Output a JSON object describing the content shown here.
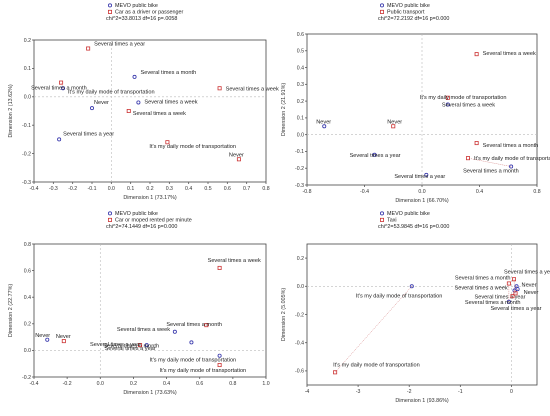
{
  "chart_data": [
    {
      "type": "scatter",
      "legend": [
        {
          "name": "MEVO public bike",
          "color": "#3333aa",
          "marker": "circle"
        },
        {
          "name": "Car as a driver or passenger",
          "color": "#cc3333",
          "marker": "square"
        }
      ],
      "stats": "chi^2=33.8013  df=16 p=.0058",
      "xlabel": "Dimension 1 (73.17%)",
      "ylabel": "Dimension 2 (13.62%)",
      "xlim": [
        -0.4,
        0.8
      ],
      "ylim": [
        -0.3,
        0.2
      ],
      "xticks": [
        "-0.4",
        "-0.3",
        "-0.2",
        "-0.1",
        "0.0",
        "0.1",
        "0.2",
        "0.3",
        "0.4",
        "0.5",
        "0.6",
        "0.7",
        "0.8"
      ],
      "yticks": [
        "-0.3",
        "-0.2",
        "-0.1",
        "0.0",
        "0.1",
        "0.2"
      ],
      "points": [
        {
          "series": 0,
          "x": -0.25,
          "y": 0.03,
          "label": "It's my daily mode of transportation"
        },
        {
          "series": 0,
          "x": 0.14,
          "y": -0.02,
          "label": "Several times a week"
        },
        {
          "series": 0,
          "x": -0.1,
          "y": -0.04,
          "label": "Never"
        },
        {
          "series": 0,
          "x": 0.12,
          "y": 0.07,
          "label": "Several times a month"
        },
        {
          "series": 0,
          "x": -0.27,
          "y": -0.15,
          "label": "Several times a year"
        },
        {
          "series": 1,
          "x": -0.26,
          "y": 0.05,
          "label": "Several times a month"
        },
        {
          "series": 1,
          "x": 0.09,
          "y": -0.05,
          "label": "Several times a week"
        },
        {
          "series": 1,
          "x": 0.56,
          "y": 0.03,
          "label": "Several times a week"
        },
        {
          "series": 1,
          "x": -0.12,
          "y": 0.17,
          "label": "Several times a year"
        },
        {
          "series": 1,
          "x": 0.29,
          "y": -0.16,
          "label": "It's my daily mode of transportation"
        },
        {
          "series": 1,
          "x": 0.66,
          "y": -0.22,
          "label": "Never"
        }
      ],
      "connectors": [
        [
          0,
          5
        ]
      ]
    },
    {
      "type": "scatter",
      "legend": [
        {
          "name": "MEVO public bike",
          "color": "#3333aa",
          "marker": "circle"
        },
        {
          "name": "Public transport",
          "color": "#cc3333",
          "marker": "square"
        }
      ],
      "stats": "chi^2=72.2192  df=16 p=0.000",
      "xlabel": "Dimension 1 (66.70%)",
      "ylabel": "Dimension 2 (21.91%)",
      "xlim": [
        -0.8,
        0.8
      ],
      "ylim": [
        -0.3,
        0.6
      ],
      "xticks": [
        "-0.8",
        "-0.4",
        "0.0",
        "0.4",
        "0.8"
      ],
      "yticks": [
        "-0.3",
        "-0.2",
        "-0.1",
        "0.0",
        "0.1",
        "0.2",
        "0.3",
        "0.4",
        "0.5",
        "0.6"
      ],
      "points": [
        {
          "series": 0,
          "x": -0.68,
          "y": 0.05,
          "label": "Never"
        },
        {
          "series": 0,
          "x": 0.18,
          "y": 0.18,
          "label": "Several times a week"
        },
        {
          "series": 0,
          "x": -0.33,
          "y": -0.12,
          "label": "Several times a year"
        },
        {
          "series": 0,
          "x": 0.62,
          "y": -0.19,
          "label": "Several times a month"
        },
        {
          "series": 0,
          "x": 0.03,
          "y": -0.24,
          "label": "Several times a year"
        },
        {
          "series": 1,
          "x": 0.38,
          "y": 0.48,
          "label": "Several times a week"
        },
        {
          "series": 1,
          "x": 0.18,
          "y": 0.22,
          "label": "It's my daily mode of transportation"
        },
        {
          "series": 1,
          "x": -0.2,
          "y": 0.05,
          "label": "Never"
        },
        {
          "series": 1,
          "x": 0.38,
          "y": -0.05,
          "label": "Several times a month"
        },
        {
          "series": 1,
          "x": 0.32,
          "y": -0.14,
          "label": "It's my daily mode of transportation"
        }
      ],
      "connectors": [
        [
          3,
          9
        ]
      ]
    },
    {
      "type": "scatter",
      "legend": [
        {
          "name": "MEVO public bike",
          "color": "#3333aa",
          "marker": "circle"
        },
        {
          "name": "Car or moped rented per minute",
          "color": "#cc3333",
          "marker": "square"
        }
      ],
      "stats": "chi^2=74.1449  df=16 p=0.000",
      "xlabel": "Dimension 1 (73.63%)",
      "ylabel": "Dimension 2 (22.77%)",
      "xlim": [
        -0.4,
        1.0
      ],
      "ylim": [
        -0.2,
        0.8
      ],
      "xticks": [
        "-0.4",
        "-0.2",
        "0.0",
        "0.2",
        "0.4",
        "0.6",
        "0.8",
        "1.0"
      ],
      "yticks": [
        "-0.2",
        "0.0",
        "0.2",
        "0.4",
        "0.6",
        "0.8"
      ],
      "points": [
        {
          "series": 0,
          "x": -0.32,
          "y": 0.08,
          "label": "Never"
        },
        {
          "series": 0,
          "x": 0.45,
          "y": 0.14,
          "label": "Several times a week"
        },
        {
          "series": 0,
          "x": 0.28,
          "y": 0.04,
          "label": "Several times a year"
        },
        {
          "series": 0,
          "x": 0.55,
          "y": 0.06,
          "label": "Several times a month"
        },
        {
          "series": 0,
          "x": 0.72,
          "y": -0.04,
          "label": "It's my daily mode of transportation"
        },
        {
          "series": 1,
          "x": 0.72,
          "y": 0.62,
          "label": "Several times a week"
        },
        {
          "series": 1,
          "x": -0.22,
          "y": 0.07,
          "label": "Never"
        },
        {
          "series": 1,
          "x": 0.64,
          "y": 0.19,
          "label": "Several times a month"
        },
        {
          "series": 1,
          "x": 0.24,
          "y": 0.04,
          "label": "Several times a year"
        },
        {
          "series": 1,
          "x": 0.72,
          "y": -0.11,
          "label": "It's my daily mode of transportation"
        }
      ],
      "connectors": []
    },
    {
      "type": "scatter",
      "legend": [
        {
          "name": "MEVO public bike",
          "color": "#3333aa",
          "marker": "circle"
        },
        {
          "name": "Taxi",
          "color": "#cc3333",
          "marker": "square"
        }
      ],
      "stats": "chi^2=53.9845  df=16 p=0.000",
      "xlabel": "Dimension 1 (93.86%)",
      "ylabel": "Dimension 2 (5.005%)",
      "xlim": [
        -4,
        0.5
      ],
      "ylim": [
        -0.7,
        0.3
      ],
      "xticks": [
        "-4",
        "-3",
        "-2",
        "-1",
        "0"
      ],
      "yticks": [
        "-0.6",
        "-0.4",
        "-0.2",
        "0.0",
        "0.2"
      ],
      "points": [
        {
          "series": 0,
          "x": -1.95,
          "y": 0.0,
          "label": "It's my daily mode of transportation"
        },
        {
          "series": 0,
          "x": -0.05,
          "y": -0.11,
          "label": "Several times a month"
        },
        {
          "series": 0,
          "x": 0.06,
          "y": -0.03,
          "label": "Several times a year"
        },
        {
          "series": 0,
          "x": 0.12,
          "y": -0.02,
          "label": "Never"
        },
        {
          "series": 0,
          "x": 0.1,
          "y": 0.0,
          "label": "Several times a week"
        },
        {
          "series": 1,
          "x": -3.45,
          "y": -0.61,
          "label": "It's my daily mode of transportation"
        },
        {
          "series": 1,
          "x": -0.05,
          "y": 0.02,
          "label": "Several times a month"
        },
        {
          "series": 1,
          "x": 0.05,
          "y": 0.05,
          "label": "Several times a year"
        },
        {
          "series": 1,
          "x": 0.08,
          "y": -0.05,
          "label": "Never"
        },
        {
          "series": 1,
          "x": 0.02,
          "y": -0.07,
          "label": "Several times a year"
        }
      ],
      "connectors": [
        [
          1,
          6
        ],
        [
          2,
          7
        ],
        [
          3,
          8
        ],
        [
          4,
          9
        ],
        [
          0,
          5
        ]
      ]
    }
  ]
}
